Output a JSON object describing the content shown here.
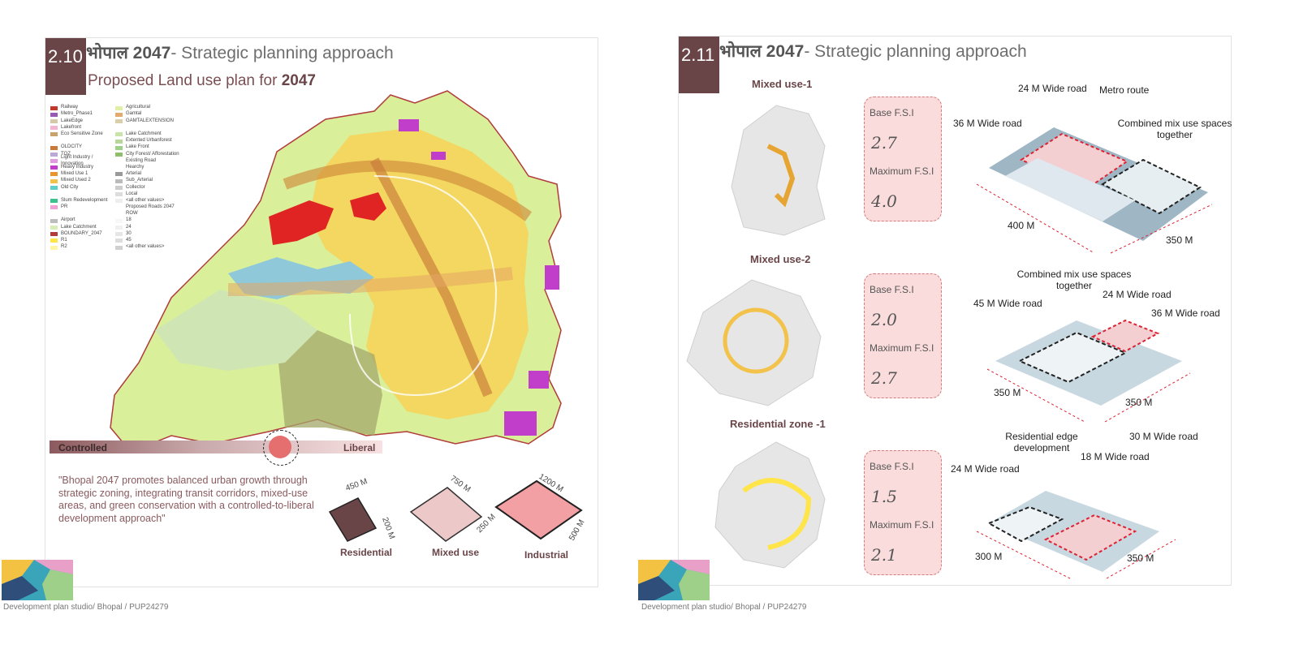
{
  "slide1": {
    "number": "2.10",
    "title_prefix": "भोपाल 2047",
    "title_rest": "- Strategic planning approach",
    "subtitle_prefix": "Proposed Land use plan for ",
    "subtitle_year": "2047",
    "legend_left": [
      {
        "label": "Railway",
        "color": "#c0392b"
      },
      {
        "label": "Metro_Phase1",
        "color": "#9b59b6"
      },
      {
        "label": "LakeEdge",
        "color": "#d6c9a8"
      },
      {
        "label": "Lakefront",
        "color": "#f3b3d3"
      },
      {
        "label": "Eco Sensitive Zone",
        "color": "#c9a36a"
      },
      {
        "label": "",
        "color": "transparent"
      },
      {
        "label": "OLDCITY",
        "color": "#c97a3a"
      },
      {
        "label": "TOZ",
        "color": "#b9a8d8"
      },
      {
        "label": "Light Industry / Innovation",
        "color": "#e39be0"
      },
      {
        "label": "Heavy Industry",
        "color": "#c03ec9"
      },
      {
        "label": "Mixed Use 1",
        "color": "#e6952f"
      },
      {
        "label": "Mixed Used 2",
        "color": "#f2c24b"
      },
      {
        "label": "Old City",
        "color": "#5fd0c9"
      },
      {
        "label": "",
        "color": "transparent"
      },
      {
        "label": "Slum Redevelopment",
        "color": "#3cc28c"
      },
      {
        "label": "PR",
        "color": "#f1a0d8"
      },
      {
        "label": "",
        "color": "transparent"
      },
      {
        "label": "Airport",
        "color": "#bdbdbd"
      },
      {
        "label": "Lake Catchment",
        "color": "#d8ecb6"
      },
      {
        "label": "BOUNDARY_2047",
        "color": "#b23b3b"
      },
      {
        "label": "R1",
        "color": "#ffe44a"
      },
      {
        "label": "R2",
        "color": "#fff5a3"
      }
    ],
    "legend_right": [
      {
        "label": "Agricultural",
        "color": "#dff0a6"
      },
      {
        "label": "Gamtal",
        "color": "#e3a96d"
      },
      {
        "label": "GAMTALEXTENSION",
        "color": "#d9cfa9"
      },
      {
        "label": "",
        "color": "transparent"
      },
      {
        "label": "Lake Catchment",
        "color": "#c9e3a8"
      },
      {
        "label": "Extented Urbanforest",
        "color": "#b7d79a"
      },
      {
        "label": "Lake Front",
        "color": "#9fd08a"
      },
      {
        "label": "City Forest/ Afforestation",
        "color": "#8fbf6a"
      },
      {
        "label": "Existing Road",
        "color": "transparent"
      },
      {
        "label": "Hearchy",
        "color": "transparent"
      },
      {
        "label": "Arterial",
        "color": "#999999"
      },
      {
        "label": "Sub_Arterial",
        "color": "#bbbbbb"
      },
      {
        "label": "Collector",
        "color": "#cccccc"
      },
      {
        "label": "Local",
        "color": "#dddddd"
      },
      {
        "label": "<all other values>",
        "color": "#eeeeee"
      },
      {
        "label": "Proposed Roads 2047",
        "color": "transparent"
      },
      {
        "label": "ROW",
        "color": "transparent"
      },
      {
        "label": "18",
        "color": "#f7f7f7"
      },
      {
        "label": "24",
        "color": "#f0f0f0"
      },
      {
        "label": "30",
        "color": "#e6e6e6"
      },
      {
        "label": "45",
        "color": "#dcdcdc"
      },
      {
        "label": "<all other values>",
        "color": "#d0d0d0"
      }
    ],
    "scale_left": "Controlled",
    "scale_right": "Liberal",
    "quote": "\"Bhopal 2047 promotes balanced urban growth through strategic zoning, integrating transit corridors, mixed-use areas, and green conservation with a controlled-to-liberal development approach\"",
    "plots": [
      {
        "name": "Residential",
        "len": "450 M",
        "wid": "200 M",
        "color": "#6a4548"
      },
      {
        "name": "Mixed use",
        "len": "750 M",
        "wid": "250 M",
        "color": "#ecc8c8"
      },
      {
        "name": "Industrial",
        "len": "1200 M",
        "wid": "500 M",
        "color": "#f3a0a4"
      }
    ],
    "footer": "Development plan studio/ Bhopal / PUP24279"
  },
  "slide2": {
    "number": "2.11",
    "title_prefix": "भोपाल 2047",
    "title_rest": "- Strategic planning approach",
    "zones": [
      {
        "label": "Mixed use-1",
        "base_label": "Base F.S.I",
        "base": "2.7",
        "max_label": "Maximum F.S.I",
        "max": "4.0",
        "callouts": [
          "24 M Wide road",
          "Metro route",
          "36 M Wide road",
          "Combined mix use spaces together"
        ],
        "dims": [
          "400 M",
          "350 M"
        ]
      },
      {
        "label": "Mixed use-2",
        "base_label": "Base F.S.I",
        "base": "2.0",
        "max_label": "Maximum F.S.I",
        "max": "2.7",
        "callouts": [
          "Combined mix use spaces together",
          "24 M Wide road",
          "45 M Wide road",
          "36 M Wide road"
        ],
        "dims": [
          "350 M",
          "350 M"
        ]
      },
      {
        "label": "Residential zone -1",
        "base_label": "Base F.S.I",
        "base": "1.5",
        "max_label": "Maximum F.S.I",
        "max": "2.1",
        "callouts": [
          "Residential edge development",
          "30 M Wide road",
          "18 M Wide road",
          "24 M Wide road"
        ],
        "dims": [
          "300 M",
          "350 M"
        ]
      }
    ],
    "footer": "Development plan studio/ Bhopal / PUP24279"
  },
  "colors": {
    "brand": "#6a4548",
    "accent": "#e46f6e",
    "card": "#fbdcdc"
  }
}
